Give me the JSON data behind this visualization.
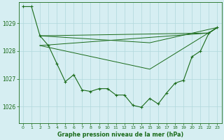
{
  "title": "Graphe pression niveau de la mer (hPa)",
  "bg_color": "#d6eef2",
  "grid_color": "#b0d8dc",
  "line_color": "#1a6b1a",
  "xlim": [
    -0.5,
    23.5
  ],
  "ylim": [
    1025.4,
    1029.75
  ],
  "yticks": [
    1026,
    1027,
    1028,
    1029
  ],
  "xticks": [
    0,
    1,
    2,
    3,
    4,
    5,
    6,
    7,
    8,
    9,
    10,
    11,
    12,
    13,
    14,
    15,
    16,
    17,
    18,
    19,
    20,
    21,
    22,
    23
  ],
  "main_line": [
    [
      0,
      1029.6
    ],
    [
      1,
      1029.6
    ],
    [
      2,
      1028.55
    ],
    [
      3,
      1028.2
    ],
    [
      4,
      1027.55
    ],
    [
      5,
      1026.9
    ],
    [
      6,
      1027.15
    ],
    [
      7,
      1026.6
    ],
    [
      8,
      1026.55
    ],
    [
      9,
      1026.65
    ],
    [
      10,
      1026.65
    ],
    [
      11,
      1026.42
    ],
    [
      12,
      1026.42
    ],
    [
      13,
      1026.05
    ],
    [
      14,
      1025.98
    ],
    [
      15,
      1026.3
    ],
    [
      16,
      1026.1
    ],
    [
      17,
      1026.5
    ],
    [
      18,
      1026.85
    ],
    [
      19,
      1026.95
    ],
    [
      20,
      1027.8
    ],
    [
      21,
      1028.0
    ],
    [
      22,
      1028.65
    ],
    [
      23,
      1028.85
    ]
  ],
  "extra_lines": [
    [
      [
        2,
        1028.55
      ],
      [
        22,
        1028.65
      ],
      [
        23,
        1028.85
      ]
    ],
    [
      [
        2,
        1028.55
      ],
      [
        15,
        1028.3
      ],
      [
        23,
        1028.85
      ]
    ],
    [
      [
        2,
        1028.2
      ],
      [
        22,
        1028.65
      ],
      [
        23,
        1028.85
      ]
    ],
    [
      [
        2,
        1028.2
      ],
      [
        15,
        1027.35
      ],
      [
        23,
        1028.85
      ]
    ]
  ]
}
